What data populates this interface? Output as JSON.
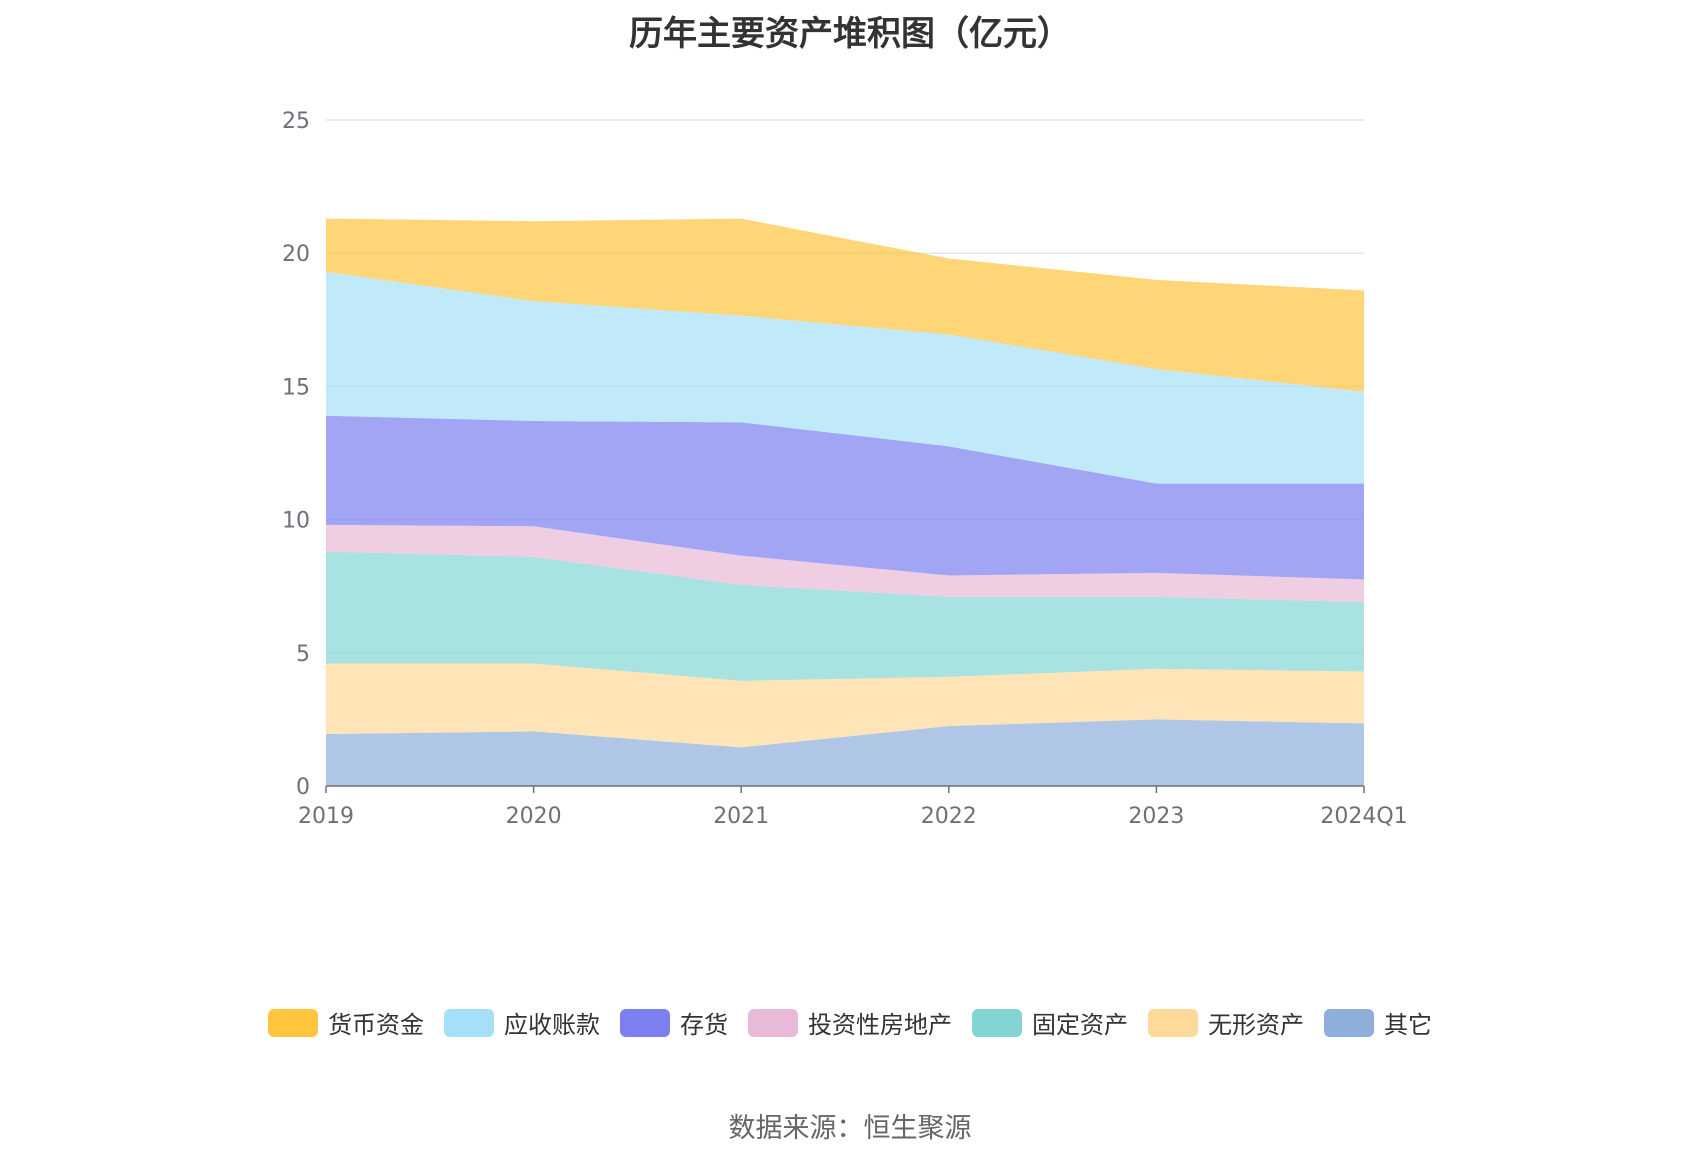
{
  "chart_data": {
    "type": "area",
    "stacked": true,
    "title": "历年主要资产堆积图（亿元）",
    "x": [
      "2019",
      "2020",
      "2021",
      "2022",
      "2023",
      "2024Q1"
    ],
    "ylim": [
      0,
      25
    ],
    "yticks": [
      "0",
      "5",
      "10",
      "15",
      "20",
      "25"
    ],
    "grid": true,
    "legend_position": "bottom",
    "series": [
      {
        "name": "其它",
        "color": "#8eaedb",
        "values": [
          1.95,
          2.05,
          1.45,
          2.25,
          2.5,
          2.35
        ]
      },
      {
        "name": "无形资产",
        "color": "#ffd999",
        "values": [
          2.65,
          2.55,
          2.5,
          1.85,
          1.9,
          1.95
        ]
      },
      {
        "name": "固定资产",
        "color": "#83d5d4",
        "values": [
          4.2,
          4.0,
          3.6,
          3.0,
          2.7,
          2.6
        ]
      },
      {
        "name": "投资性房地产",
        "color": "#e8b9d8",
        "values": [
          1.0,
          1.15,
          1.1,
          0.8,
          0.9,
          0.85
        ]
      },
      {
        "name": "存货",
        "color": "#7b7ff0",
        "values": [
          4.1,
          3.95,
          5.0,
          4.85,
          3.35,
          3.6
        ]
      },
      {
        "name": "应收账款",
        "color": "#a5dff8",
        "values": [
          5.4,
          4.5,
          4.0,
          4.2,
          4.3,
          3.45
        ]
      },
      {
        "name": "货币资金",
        "color": "#ffc53d",
        "values": [
          2.0,
          3.0,
          3.65,
          2.85,
          3.35,
          3.8
        ]
      }
    ],
    "legend_order": [
      "货币资金",
      "应收账款",
      "存货",
      "投资性房地产",
      "固定资产",
      "无形资产",
      "其它"
    ]
  },
  "source": "数据来源：恒生聚源"
}
